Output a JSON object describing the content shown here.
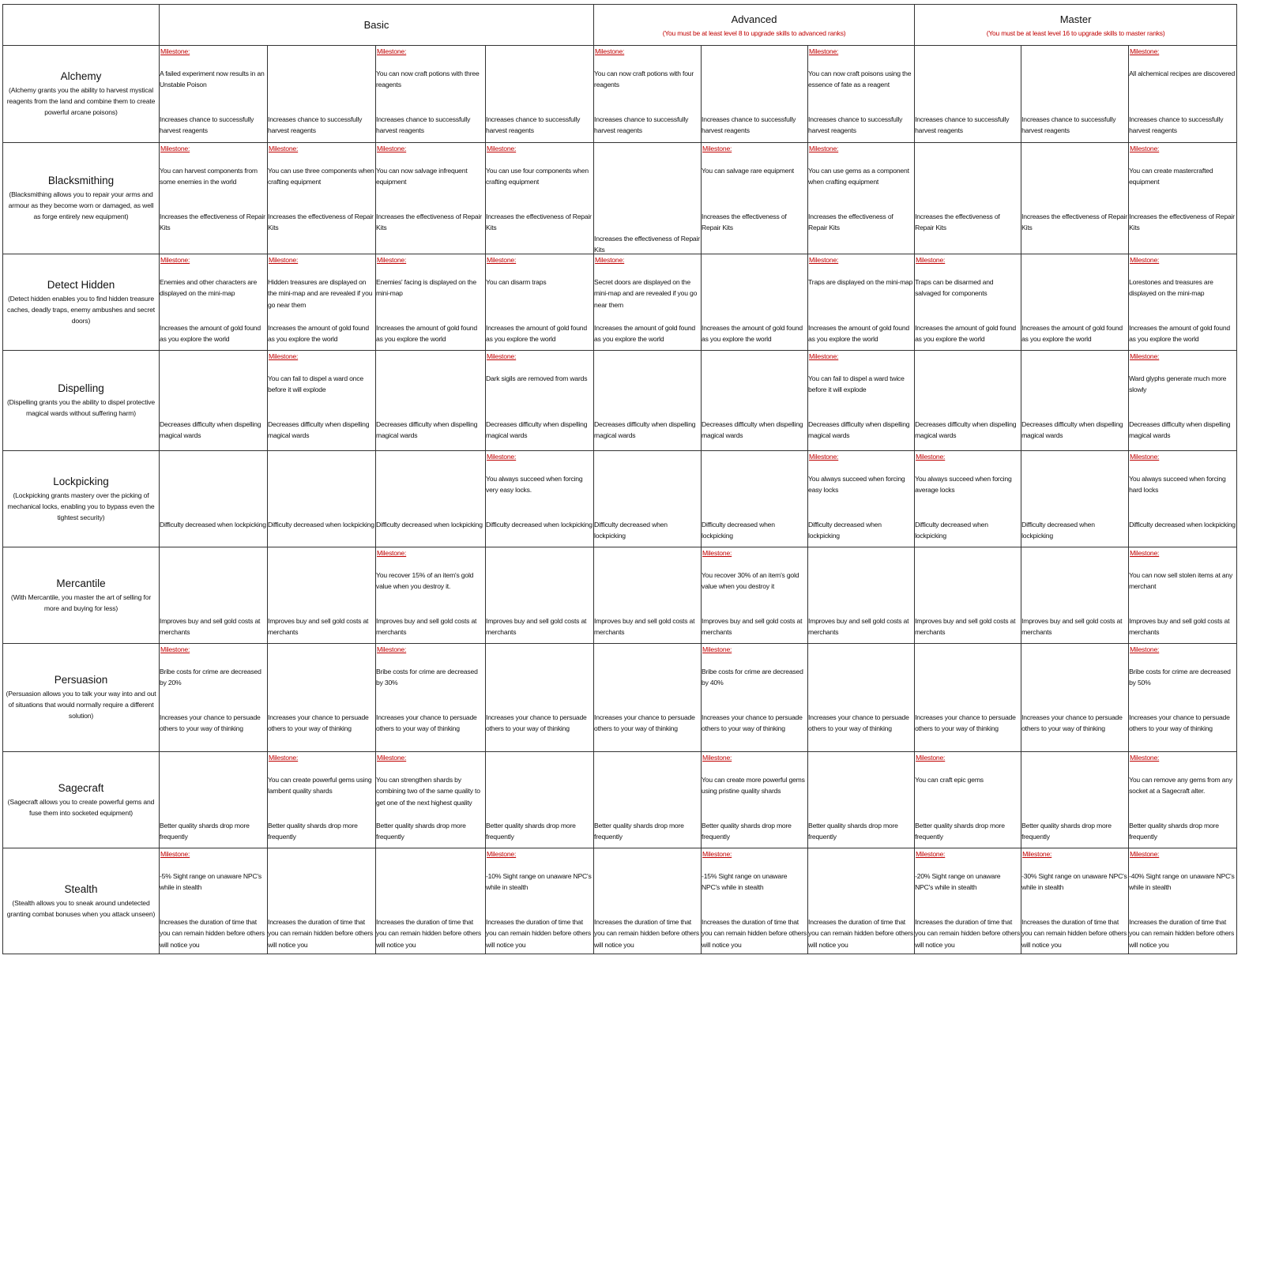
{
  "header": {
    "tiers": [
      {
        "name": "Basic",
        "note": ""
      },
      {
        "name": "Advanced",
        "note": "(You must be at least level 8 to upgrade skills to advanced ranks)"
      },
      {
        "name": "Master",
        "note": "(You must be at least level 16 to upgrade skills to  master ranks)"
      }
    ]
  },
  "milestone_label": "Milestone:",
  "colors": {
    "milestone": "#c00000",
    "text": "#111111",
    "border": "#333333"
  },
  "skills": [
    {
      "name": "Alchemy",
      "desc": "(Alchemy grants you the ability to harvest mystical reagents from the land and combine them to create powerful arcane poisons)",
      "base": "Increases chance to successfully harvest reagents",
      "milestones": [
        "A failed experiment now results in an Unstable Poison",
        null,
        "You can now craft potions with three reagents",
        null,
        "You can now craft potions with four reagents",
        null,
        "You can now craft poisons using the essence of fate as a reagent",
        null,
        null,
        "All alchemical recipes are discovered"
      ]
    },
    {
      "name": "Blacksmithing",
      "desc": "(Blacksmithing allows you to repair your arms and armour as they become worn or damaged, as well as forge entirely new equipment)",
      "base": "Increases the effectiveness of Repair Kits",
      "milestones": [
        "You can harvest components from some enemies in the world",
        "You can use three components when crafting equipment",
        "You can now salvage infrequent equipment",
        "You can use four components when crafting equipment",
        null,
        "You can salvage rare equipment",
        "You can use gems as a component when crafting equipment",
        null,
        null,
        "You can create mastercrafted equipment"
      ]
    },
    {
      "name": "Detect Hidden",
      "desc": "(Detect hidden enables you to find hidden treasure caches, deadly traps, enemy ambushes and secret doors)",
      "base": "Increases the amount of gold found as you explore the world",
      "milestones": [
        "Enemies and other characters are displayed on the mini-map",
        "Hidden treasures are displayed on the mini-map and are revealed if you go near them",
        "Enemies' facing is displayed on the mini-map",
        "You can disarm traps",
        "Secret doors are displayed on the mini-map and are revealed if you go near them",
        null,
        "Traps are displayed on the mini-map",
        "Traps can be disarmed and salvaged for components",
        null,
        "Lorestones and treasures are displayed on the mini-map"
      ]
    },
    {
      "name": "Dispelling",
      "desc": "(Dispelling grants you the ability to dispel protective magical wards  without suffering harm)",
      "base": "Decreases difficulty when dispelling magical wards",
      "milestones": [
        null,
        "You can fail to dispel a ward once before it will explode",
        null,
        "Dark sigils are removed from wards",
        null,
        null,
        "You can fail to dispel a ward twice before it will explode",
        null,
        null,
        "Ward glyphs generate much more slowly"
      ]
    },
    {
      "name": "Lockpicking",
      "desc": "(Lockpicking grants mastery over the picking of mechanical locks, enabling you to bypass even the tightest security)",
      "base": "Difficulty decreased when lockpicking",
      "milestones": [
        null,
        null,
        null,
        "You always succeed when forcing very easy locks.",
        null,
        null,
        "You always succeed when forcing easy locks",
        "You always succeed when forcing average locks",
        null,
        "You always succeed when forcing hard locks"
      ]
    },
    {
      "name": "Mercantile",
      "desc": "(With Mercantile, you master the art of selling for more and buying for less)",
      "base": "Improves buy and sell gold costs at merchants",
      "milestones": [
        null,
        null,
        "You recover 15% of an item's gold value when you destroy it.",
        null,
        null,
        "You recover 30% of an item's gold value when you destroy it",
        null,
        null,
        null,
        "You can now sell stolen items at any merchant"
      ]
    },
    {
      "name": "Persuasion",
      "desc": "(Persuasion allows you to talk your way into and out of situations that would normally require a different solution)",
      "base": "Increases your chance to persuade others to your way of thinking",
      "milestones": [
        "Bribe costs for crime are decreased by 20%",
        null,
        "Bribe costs for crime are decreased by 30%",
        null,
        null,
        "Bribe costs for crime are decreased by 40%",
        null,
        null,
        null,
        "Bribe costs for crime are decreased by 50%"
      ]
    },
    {
      "name": "Sagecraft",
      "desc": "(Sagecraft allows you to create powerful gems and fuse them into socketed equipment)",
      "base": "Better quality shards drop more frequently",
      "milestones": [
        null,
        "You can create powerful gems using lambent quality shards",
        "You can strengthen shards by combining two of the same quality to get one of the next highest quality",
        null,
        null,
        "You can create more powerful gems using pristine quality shards",
        null,
        "You can craft epic gems",
        null,
        "You can remove any gems from any socket at a Sagecraft alter."
      ]
    },
    {
      "name": "Stealth",
      "desc": "(Stealth allows you to sneak around undetected granting combat bonuses when you attack unseen)",
      "base": "Increases the duration of time that you can remain hidden before others will notice you",
      "milestones": [
        "-5% Sight range on unaware NPC's while in stealth",
        null,
        null,
        "-10% Sight range on unaware NPC's while in stealth",
        null,
        "-15% Sight range on unaware NPC's while in stealth",
        null,
        "-20% Sight range on unaware NPC's while in stealth",
        "-30% Sight range on unaware NPC's while in stealth",
        "-40% Sight range on unaware NPC's while in stealth"
      ]
    }
  ]
}
